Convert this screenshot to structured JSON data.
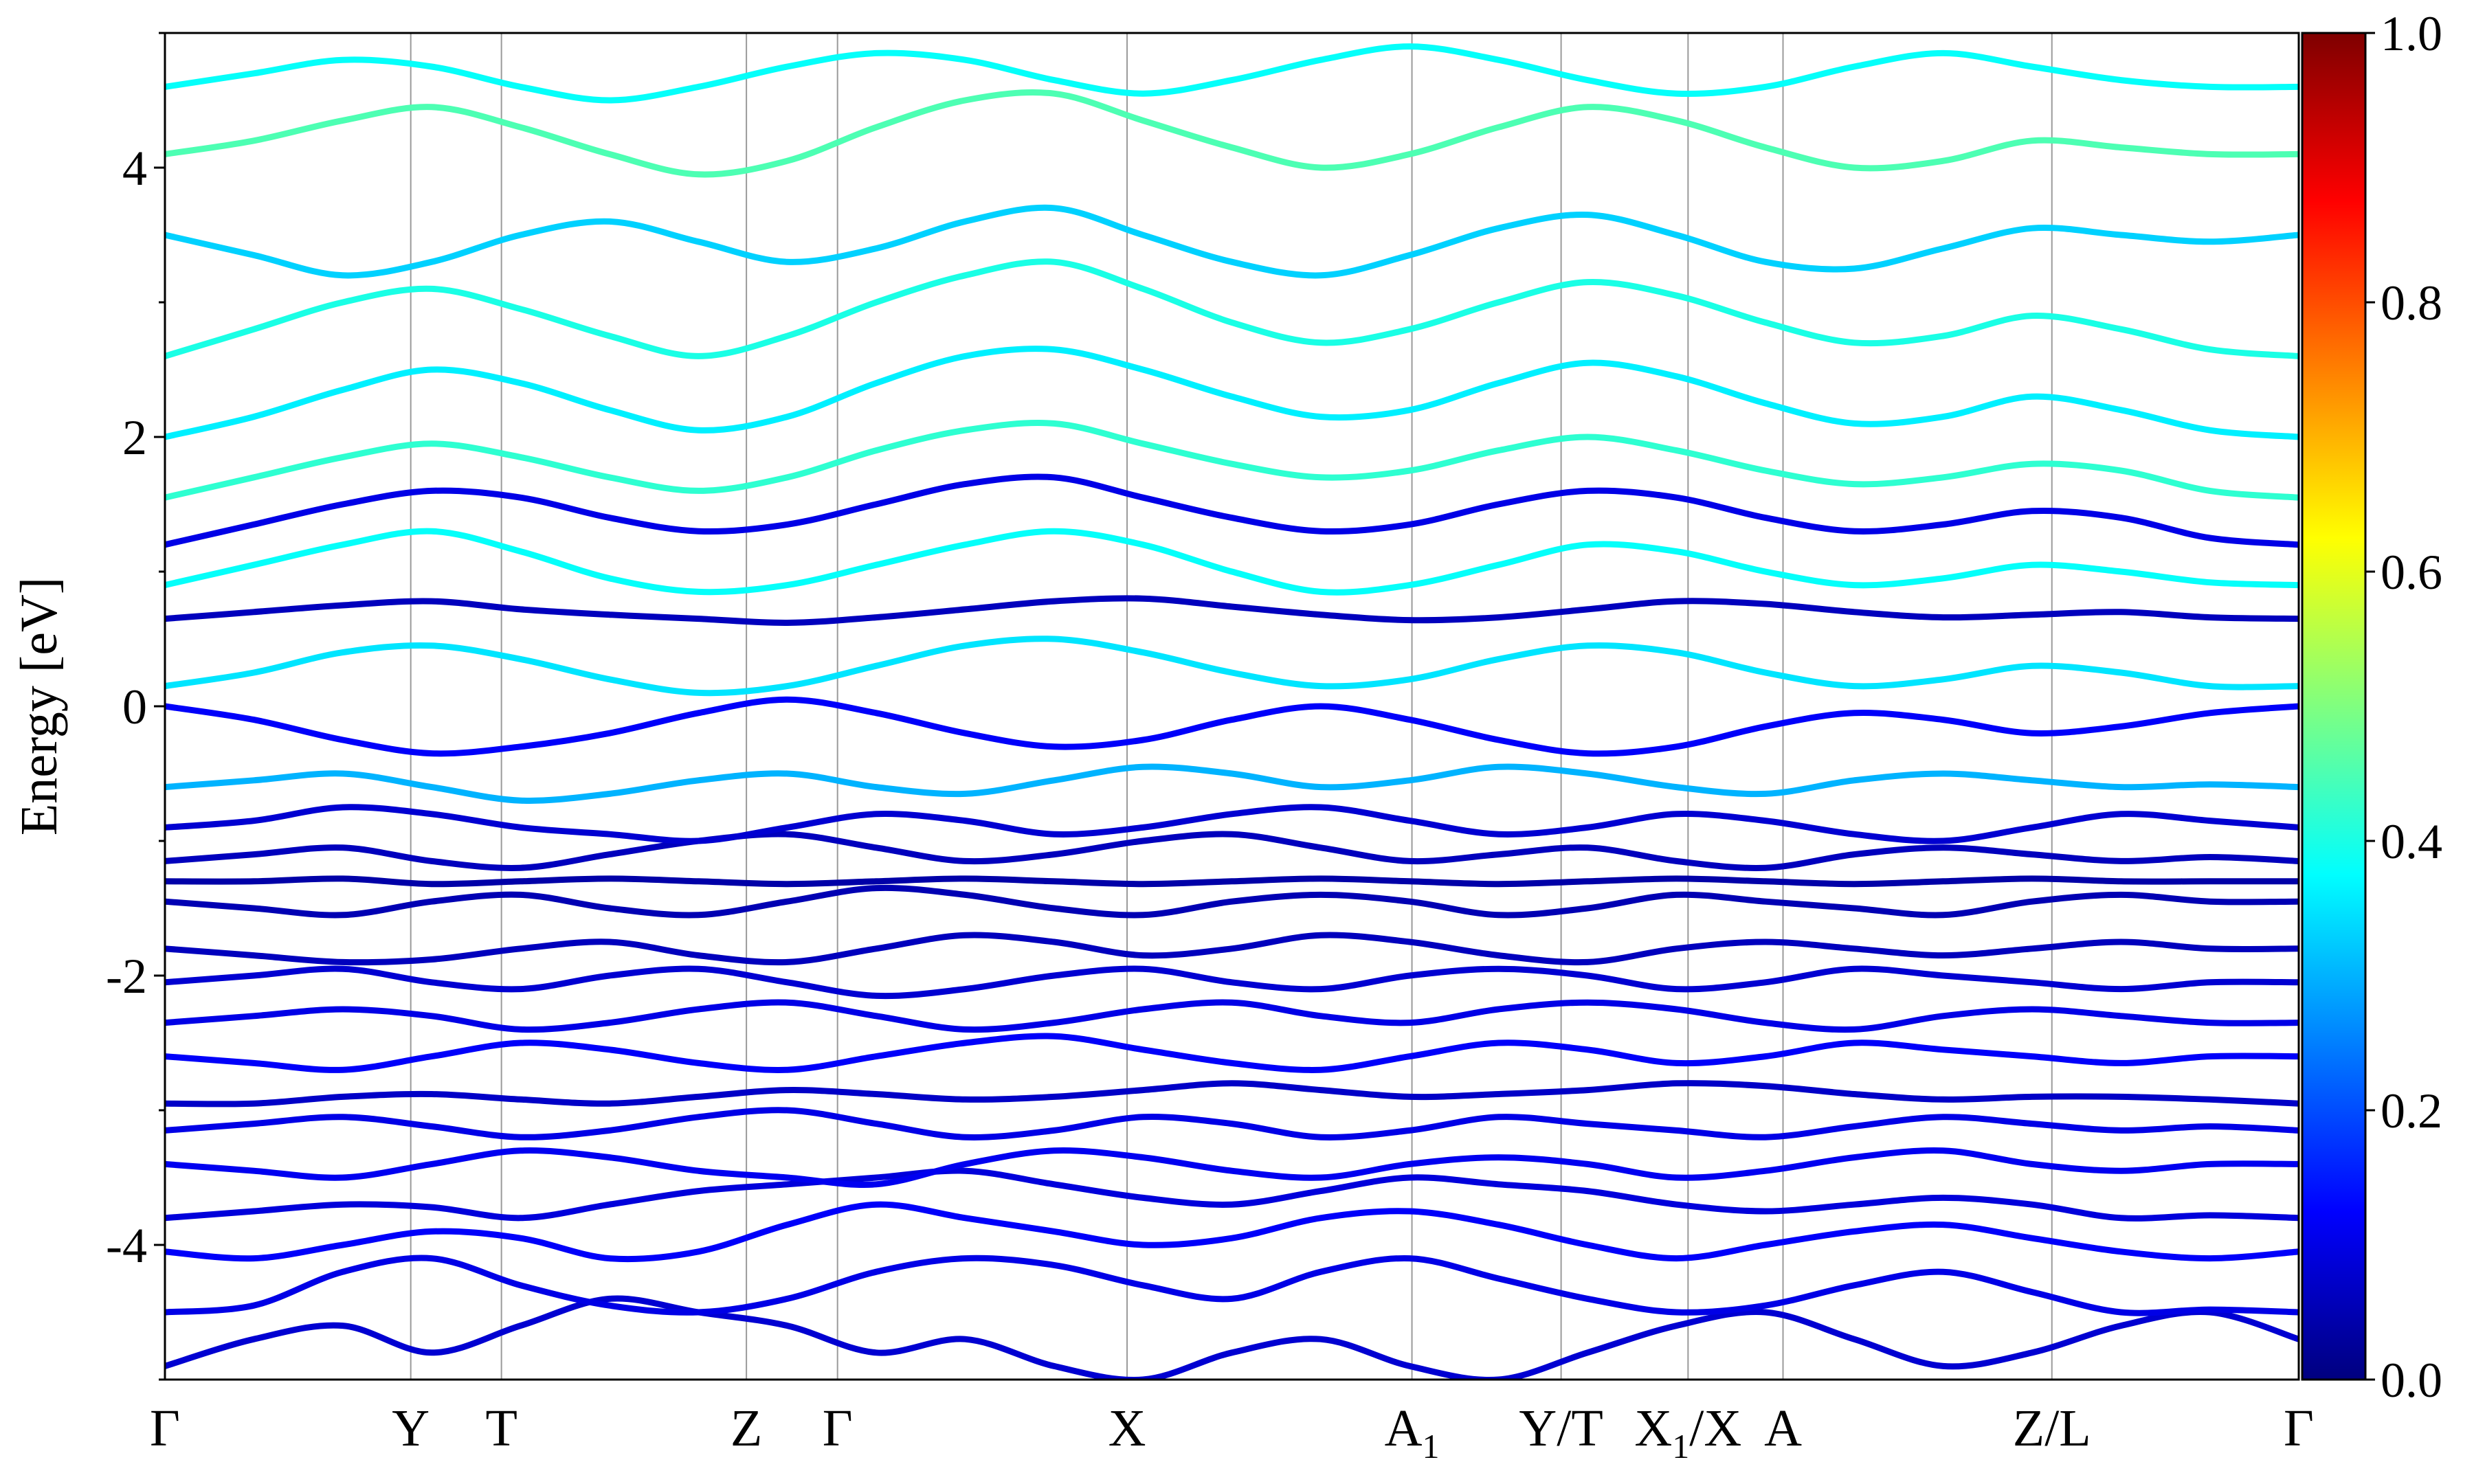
{
  "chart_data": {
    "type": "line",
    "title": "",
    "xlabel": "",
    "ylabel": "Energy [eV]",
    "ylim": [
      -5,
      5
    ],
    "y_ticks": [
      -4,
      -2,
      0,
      2,
      4
    ],
    "grid": false,
    "legend": "none",
    "kpath": [
      {
        "label": "Γ",
        "sub": "",
        "x": 0.0
      },
      {
        "label": "Y",
        "sub": "",
        "x": 0.1152
      },
      {
        "label": "T",
        "sub": "",
        "x": 0.1577
      },
      {
        "label": "Z",
        "sub": "",
        "x": 0.2725
      },
      {
        "label": "Γ",
        "sub": "",
        "x": 0.3152
      },
      {
        "label": "X",
        "sub": "",
        "x": 0.4509
      },
      {
        "label": "A",
        "sub": "1",
        "x": 0.5844
      },
      {
        "label": "Y/T",
        "sub": "",
        "x": 0.6543
      },
      {
        "label": "X",
        "sub": "1",
        "x": 0.7138,
        "suffix": "/X"
      },
      {
        "label": "A",
        "sub": "",
        "x": 0.7583
      },
      {
        "label": "Z/L",
        "sub": "",
        "x": 0.8843
      },
      {
        "label": "Γ",
        "sub": "",
        "x": 1.0
      }
    ],
    "colorbar": {
      "colormap": "jet",
      "range": [
        0.0,
        1.0
      ],
      "ticks": [
        "0.0",
        "0.2",
        "0.4",
        "0.6",
        "0.8",
        "1.0"
      ]
    },
    "series": [
      {
        "weight": 0.08,
        "values": [
          -4.9,
          -4.7,
          -4.6,
          -4.8,
          -4.6,
          -4.4,
          -4.5,
          -4.6,
          -4.8,
          -4.7,
          -4.9,
          -5.0,
          -4.8,
          -4.7,
          -4.9,
          -5.0,
          -4.8,
          -4.6,
          -4.5,
          -4.7,
          -4.9,
          -4.8,
          -4.6,
          -4.5,
          -4.7
        ]
      },
      {
        "weight": 0.1,
        "values": [
          -4.5,
          -4.45,
          -4.2,
          -4.1,
          -4.3,
          -4.45,
          -4.5,
          -4.4,
          -4.2,
          -4.1,
          -4.15,
          -4.3,
          -4.4,
          -4.2,
          -4.1,
          -4.25,
          -4.4,
          -4.5,
          -4.45,
          -4.3,
          -4.2,
          -4.35,
          -4.5,
          -4.48,
          -4.5
        ]
      },
      {
        "weight": 0.12,
        "values": [
          -4.05,
          -4.1,
          -4.0,
          -3.9,
          -3.95,
          -4.1,
          -4.05,
          -3.85,
          -3.7,
          -3.8,
          -3.9,
          -4.0,
          -3.95,
          -3.8,
          -3.75,
          -3.85,
          -4.0,
          -4.1,
          -4.0,
          -3.9,
          -3.85,
          -3.95,
          -4.05,
          -4.1,
          -4.05
        ]
      },
      {
        "weight": 0.09,
        "values": [
          -3.8,
          -3.75,
          -3.7,
          -3.72,
          -3.8,
          -3.7,
          -3.6,
          -3.55,
          -3.5,
          -3.45,
          -3.55,
          -3.65,
          -3.7,
          -3.6,
          -3.5,
          -3.55,
          -3.6,
          -3.7,
          -3.75,
          -3.7,
          -3.65,
          -3.7,
          -3.8,
          -3.78,
          -3.8
        ]
      },
      {
        "weight": 0.11,
        "values": [
          -3.4,
          -3.45,
          -3.5,
          -3.4,
          -3.3,
          -3.35,
          -3.45,
          -3.5,
          -3.55,
          -3.4,
          -3.3,
          -3.35,
          -3.45,
          -3.5,
          -3.4,
          -3.35,
          -3.4,
          -3.5,
          -3.45,
          -3.35,
          -3.3,
          -3.4,
          -3.45,
          -3.4,
          -3.4
        ]
      },
      {
        "weight": 0.1,
        "values": [
          -3.15,
          -3.1,
          -3.05,
          -3.12,
          -3.2,
          -3.15,
          -3.05,
          -3.0,
          -3.1,
          -3.2,
          -3.15,
          -3.05,
          -3.1,
          -3.2,
          -3.15,
          -3.05,
          -3.1,
          -3.15,
          -3.2,
          -3.12,
          -3.05,
          -3.1,
          -3.15,
          -3.12,
          -3.15
        ]
      },
      {
        "weight": 0.07,
        "values": [
          -2.95,
          -2.95,
          -2.9,
          -2.88,
          -2.92,
          -2.95,
          -2.9,
          -2.85,
          -2.88,
          -2.92,
          -2.9,
          -2.85,
          -2.8,
          -2.85,
          -2.9,
          -2.88,
          -2.85,
          -2.8,
          -2.82,
          -2.88,
          -2.92,
          -2.9,
          -2.9,
          -2.92,
          -2.95
        ]
      },
      {
        "weight": 0.12,
        "values": [
          -2.6,
          -2.65,
          -2.7,
          -2.6,
          -2.5,
          -2.55,
          -2.65,
          -2.7,
          -2.6,
          -2.5,
          -2.45,
          -2.55,
          -2.65,
          -2.7,
          -2.6,
          -2.5,
          -2.55,
          -2.65,
          -2.6,
          -2.5,
          -2.55,
          -2.6,
          -2.65,
          -2.6,
          -2.6
        ]
      },
      {
        "weight": 0.1,
        "values": [
          -2.35,
          -2.3,
          -2.25,
          -2.3,
          -2.4,
          -2.35,
          -2.25,
          -2.2,
          -2.3,
          -2.4,
          -2.35,
          -2.25,
          -2.2,
          -2.3,
          -2.35,
          -2.25,
          -2.2,
          -2.25,
          -2.35,
          -2.4,
          -2.3,
          -2.25,
          -2.3,
          -2.35,
          -2.35
        ]
      },
      {
        "weight": 0.08,
        "values": [
          -2.05,
          -2.0,
          -1.95,
          -2.05,
          -2.1,
          -2.0,
          -1.95,
          -2.05,
          -2.15,
          -2.1,
          -2.0,
          -1.95,
          -2.05,
          -2.1,
          -2.0,
          -1.95,
          -2.0,
          -2.1,
          -2.05,
          -1.95,
          -2.0,
          -2.05,
          -2.1,
          -2.05,
          -2.05
        ]
      },
      {
        "weight": 0.06,
        "values": [
          -1.8,
          -1.85,
          -1.9,
          -1.88,
          -1.8,
          -1.75,
          -1.85,
          -1.9,
          -1.8,
          -1.7,
          -1.75,
          -1.85,
          -1.8,
          -1.7,
          -1.75,
          -1.85,
          -1.9,
          -1.8,
          -1.75,
          -1.8,
          -1.85,
          -1.8,
          -1.75,
          -1.8,
          -1.8
        ]
      },
      {
        "weight": 0.05,
        "values": [
          -1.45,
          -1.5,
          -1.55,
          -1.45,
          -1.4,
          -1.5,
          -1.55,
          -1.45,
          -1.35,
          -1.4,
          -1.5,
          -1.55,
          -1.45,
          -1.4,
          -1.45,
          -1.55,
          -1.5,
          -1.4,
          -1.45,
          -1.5,
          -1.55,
          -1.45,
          -1.4,
          -1.45,
          -1.45
        ]
      },
      {
        "weight": 0.04,
        "values": [
          -1.3,
          -1.3,
          -1.28,
          -1.32,
          -1.3,
          -1.28,
          -1.3,
          -1.32,
          -1.3,
          -1.28,
          -1.3,
          -1.32,
          -1.3,
          -1.28,
          -1.3,
          -1.32,
          -1.3,
          -1.28,
          -1.3,
          -1.32,
          -1.3,
          -1.28,
          -1.3,
          -1.3,
          -1.3
        ]
      },
      {
        "weight": 0.06,
        "values": [
          -1.15,
          -1.1,
          -1.05,
          -1.15,
          -1.2,
          -1.1,
          -1.0,
          -0.95,
          -1.05,
          -1.15,
          -1.1,
          -1.0,
          -0.95,
          -1.05,
          -1.15,
          -1.1,
          -1.05,
          -1.15,
          -1.2,
          -1.1,
          -1.05,
          -1.1,
          -1.15,
          -1.12,
          -1.15
        ]
      },
      {
        "weight": 0.08,
        "values": [
          -0.9,
          -0.85,
          -0.75,
          -0.8,
          -0.9,
          -0.95,
          -1.0,
          -0.9,
          -0.8,
          -0.85,
          -0.95,
          -0.9,
          -0.8,
          -0.75,
          -0.85,
          -0.95,
          -0.9,
          -0.8,
          -0.85,
          -0.95,
          -1.0,
          -0.9,
          -0.8,
          -0.85,
          -0.9
        ]
      },
      {
        "weight": 0.3,
        "values": [
          -0.6,
          -0.55,
          -0.5,
          -0.6,
          -0.7,
          -0.65,
          -0.55,
          -0.5,
          -0.6,
          -0.65,
          -0.55,
          -0.45,
          -0.5,
          -0.6,
          -0.55,
          -0.45,
          -0.5,
          -0.6,
          -0.65,
          -0.55,
          -0.5,
          -0.55,
          -0.6,
          -0.58,
          -0.6
        ]
      },
      {
        "weight": 0.12,
        "values": [
          0.0,
          -0.1,
          -0.25,
          -0.35,
          -0.3,
          -0.2,
          -0.05,
          0.05,
          -0.05,
          -0.2,
          -0.3,
          -0.25,
          -0.1,
          0.0,
          -0.1,
          -0.25,
          -0.35,
          -0.3,
          -0.15,
          -0.05,
          -0.1,
          -0.2,
          -0.15,
          -0.05,
          0.0
        ]
      },
      {
        "weight": 0.35,
        "values": [
          0.15,
          0.25,
          0.4,
          0.45,
          0.35,
          0.2,
          0.1,
          0.15,
          0.3,
          0.45,
          0.5,
          0.4,
          0.25,
          0.15,
          0.2,
          0.35,
          0.45,
          0.4,
          0.25,
          0.15,
          0.2,
          0.3,
          0.25,
          0.15,
          0.15
        ]
      },
      {
        "weight": 0.06,
        "values": [
          0.65,
          0.7,
          0.75,
          0.78,
          0.72,
          0.68,
          0.65,
          0.62,
          0.66,
          0.72,
          0.78,
          0.8,
          0.74,
          0.68,
          0.64,
          0.66,
          0.72,
          0.78,
          0.76,
          0.7,
          0.66,
          0.68,
          0.7,
          0.66,
          0.65
        ]
      },
      {
        "weight": 0.38,
        "values": [
          0.9,
          1.05,
          1.2,
          1.3,
          1.15,
          0.95,
          0.85,
          0.9,
          1.05,
          1.2,
          1.3,
          1.2,
          1.0,
          0.85,
          0.9,
          1.05,
          1.2,
          1.15,
          1.0,
          0.9,
          0.95,
          1.05,
          1.0,
          0.92,
          0.9
        ]
      },
      {
        "weight": 0.1,
        "values": [
          1.2,
          1.35,
          1.5,
          1.6,
          1.55,
          1.4,
          1.3,
          1.35,
          1.5,
          1.65,
          1.7,
          1.55,
          1.4,
          1.3,
          1.35,
          1.5,
          1.6,
          1.55,
          1.4,
          1.3,
          1.35,
          1.45,
          1.4,
          1.25,
          1.2
        ]
      },
      {
        "weight": 0.42,
        "values": [
          1.55,
          1.7,
          1.85,
          1.95,
          1.85,
          1.7,
          1.6,
          1.7,
          1.9,
          2.05,
          2.1,
          1.95,
          1.8,
          1.7,
          1.75,
          1.9,
          2.0,
          1.9,
          1.75,
          1.65,
          1.7,
          1.8,
          1.75,
          1.6,
          1.55
        ]
      },
      {
        "weight": 0.36,
        "values": [
          2.0,
          2.15,
          2.35,
          2.5,
          2.4,
          2.2,
          2.05,
          2.15,
          2.4,
          2.6,
          2.65,
          2.5,
          2.3,
          2.15,
          2.2,
          2.4,
          2.55,
          2.45,
          2.25,
          2.1,
          2.15,
          2.3,
          2.2,
          2.05,
          2.0
        ]
      },
      {
        "weight": 0.4,
        "values": [
          2.6,
          2.8,
          3.0,
          3.1,
          2.95,
          2.75,
          2.6,
          2.75,
          3.0,
          3.2,
          3.3,
          3.1,
          2.85,
          2.7,
          2.8,
          3.0,
          3.15,
          3.05,
          2.85,
          2.7,
          2.75,
          2.9,
          2.8,
          2.65,
          2.6
        ]
      },
      {
        "weight": 0.33,
        "values": [
          3.5,
          3.35,
          3.2,
          3.3,
          3.5,
          3.6,
          3.45,
          3.3,
          3.4,
          3.6,
          3.7,
          3.5,
          3.3,
          3.2,
          3.35,
          3.55,
          3.65,
          3.5,
          3.3,
          3.25,
          3.4,
          3.55,
          3.5,
          3.45,
          3.5
        ]
      },
      {
        "weight": 0.45,
        "values": [
          4.1,
          4.2,
          4.35,
          4.45,
          4.3,
          4.1,
          3.95,
          4.05,
          4.3,
          4.5,
          4.55,
          4.35,
          4.15,
          4.0,
          4.1,
          4.3,
          4.45,
          4.35,
          4.15,
          4.0,
          4.05,
          4.2,
          4.15,
          4.1,
          4.1
        ]
      },
      {
        "weight": 0.38,
        "values": [
          4.6,
          4.7,
          4.8,
          4.75,
          4.6,
          4.5,
          4.6,
          4.75,
          4.85,
          4.8,
          4.65,
          4.55,
          4.65,
          4.8,
          4.9,
          4.8,
          4.65,
          4.55,
          4.6,
          4.75,
          4.85,
          4.75,
          4.65,
          4.6,
          4.6
        ]
      }
    ]
  }
}
